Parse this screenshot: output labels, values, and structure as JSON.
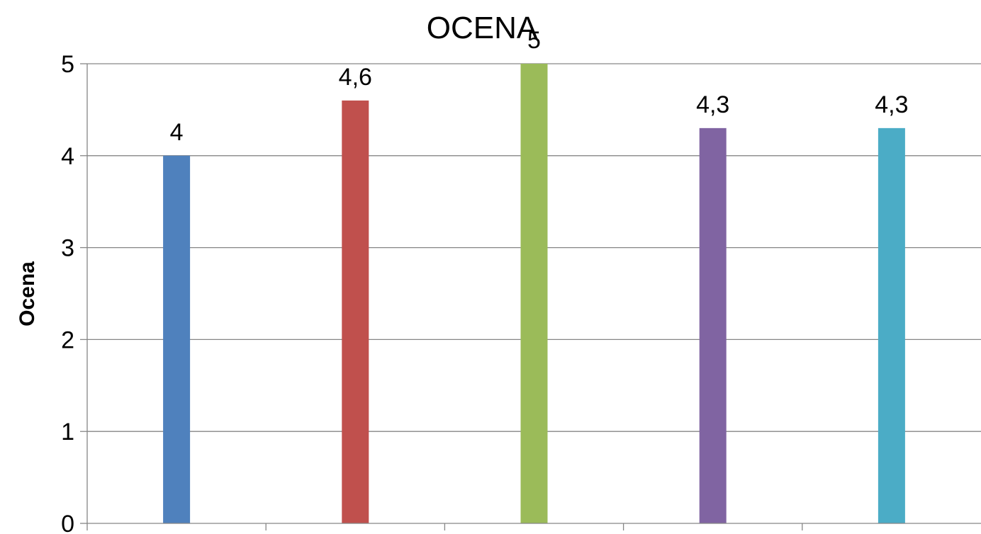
{
  "chart_data": {
    "type": "bar",
    "title": "OCENA",
    "xlabel": "",
    "ylabel": "Ocena",
    "ylim": [
      0,
      5
    ],
    "yticks": [
      "0",
      "1",
      "2",
      "3",
      "4",
      "5"
    ],
    "grid": true,
    "categories": [
      "",
      "",
      "",
      "",
      ""
    ],
    "values": [
      4,
      4.6,
      5,
      4.3,
      4.3
    ],
    "data_labels": [
      "4",
      "4,6",
      "5",
      "4,3",
      "4,3"
    ],
    "colors": [
      "#4F81BD",
      "#C0504D",
      "#9BBB59",
      "#8064A2",
      "#4BACC6"
    ]
  }
}
